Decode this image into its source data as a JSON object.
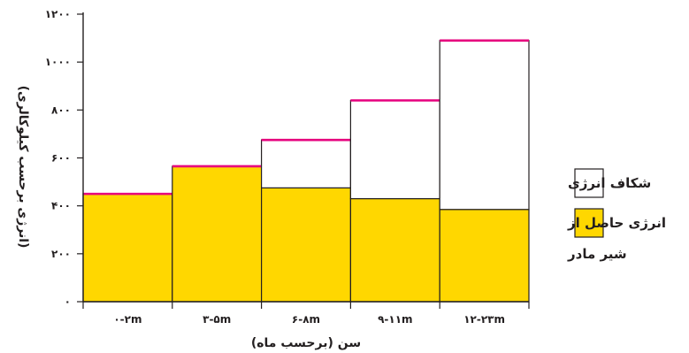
{
  "chart_data": {
    "type": "bar",
    "title": "",
    "xlabel": "سن (برحسب ماه)",
    "ylabel": "(انرژی برحسب کیلوکالری)",
    "ylim": [
      0,
      1200
    ],
    "yticks": [
      0,
      200,
      400,
      600,
      800,
      1000,
      1200
    ],
    "ytick_labels": [
      "۰",
      "۲۰۰",
      "۴۰۰",
      "۶۰۰",
      "۸۰۰",
      "۱۰۰۰",
      "۱۲۰۰"
    ],
    "categories": [
      "۰-۲m",
      "۳-۵m",
      "۶-۸m",
      "۹-۱۱m",
      "۱۲-۲۳m"
    ],
    "series": [
      {
        "name": "انرژی حاصل از شیر مادر",
        "values": [
          450,
          565,
          475,
          430,
          385
        ],
        "color": "#ffd700"
      },
      {
        "name": "شکاف انرژی",
        "values": [
          0,
          0,
          200,
          410,
          705
        ],
        "color": "#ffffff"
      }
    ],
    "total_line_color": "#e6007e",
    "legend_position": "right",
    "legend": [
      {
        "label": "شکاف انرژی",
        "color": "#ffffff"
      },
      {
        "label": "انرژی حاصل از",
        "label_line2": "شیر مادر",
        "color": "#ffd700"
      }
    ]
  }
}
